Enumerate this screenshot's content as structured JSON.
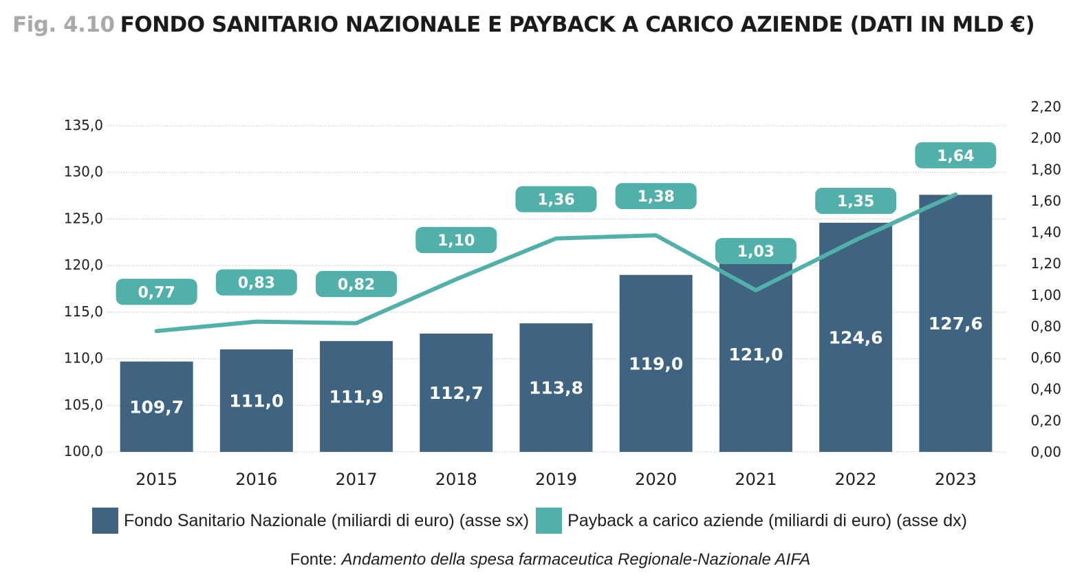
{
  "header": {
    "fig_number": "Fig. 4.10",
    "title": "FONDO SANITARIO NAZIONALE E PAYBACK A CARICO AZIENDE (DATI IN MLD €)"
  },
  "colors": {
    "bar": "#3f6481",
    "line": "#52b0ab",
    "grid": "#bdbdbd",
    "title_gray": "#a9a9a9"
  },
  "chart_data": {
    "type": "bar+line",
    "title": "FONDO SANITARIO NAZIONALE E PAYBACK A CARICO AZIENDE (DATI IN MLD €)",
    "categories": [
      "2015",
      "2016",
      "2017",
      "2018",
      "2019",
      "2020",
      "2021",
      "2022",
      "2023"
    ],
    "series": [
      {
        "name": "Fondo Sanitario Nazionale (miliardi di euro) (asse sx)",
        "type": "bar",
        "axis": "left",
        "values": [
          109.7,
          111.0,
          111.9,
          112.7,
          113.8,
          119.0,
          121.0,
          124.6,
          127.6
        ],
        "labels": [
          "109,7",
          "111,0",
          "111,9",
          "112,7",
          "113,8",
          "119,0",
          "121,0",
          "124,6",
          "127,6"
        ]
      },
      {
        "name": "Payback a carico aziende (miliardi di euro) (asse dx)",
        "type": "line",
        "axis": "right",
        "values": [
          0.77,
          0.83,
          0.82,
          1.1,
          1.36,
          1.38,
          1.03,
          1.35,
          1.64
        ],
        "labels": [
          "0,77",
          "0,83",
          "0,82",
          "1,10",
          "1,36",
          "1,38",
          "1,03",
          "1,35",
          "1,64"
        ]
      }
    ],
    "left_axis": {
      "ylim": [
        100,
        135
      ],
      "ticks": [
        100,
        105,
        110,
        115,
        120,
        125,
        130,
        135
      ],
      "tick_labels": [
        "100,0",
        "105,0",
        "110,0",
        "115,0",
        "120,0",
        "125,0",
        "130,0",
        "135,0"
      ]
    },
    "right_axis": {
      "ylim": [
        0,
        2.2
      ],
      "ticks": [
        0,
        0.2,
        0.4,
        0.6,
        0.8,
        1.0,
        1.2,
        1.4,
        1.6,
        1.8,
        2.0,
        2.2
      ],
      "tick_labels": [
        "0,00",
        "0,20",
        "0,40",
        "0,60",
        "0,80",
        "1,00",
        "1,20",
        "1,40",
        "1,60",
        "1,80",
        "2,00",
        "2,20"
      ]
    },
    "xlabel": "",
    "grid": true,
    "legend": "bottom"
  },
  "legend": {
    "items": [
      {
        "label": "Fondo Sanitario Nazionale (miliardi di euro) (asse sx)"
      },
      {
        "label": "Payback a carico aziende (miliardi di euro) (asse dx)"
      }
    ]
  },
  "source": {
    "prefix": "Fonte: ",
    "text": "Andamento della spesa farmaceutica Regionale-Nazionale AIFA"
  }
}
